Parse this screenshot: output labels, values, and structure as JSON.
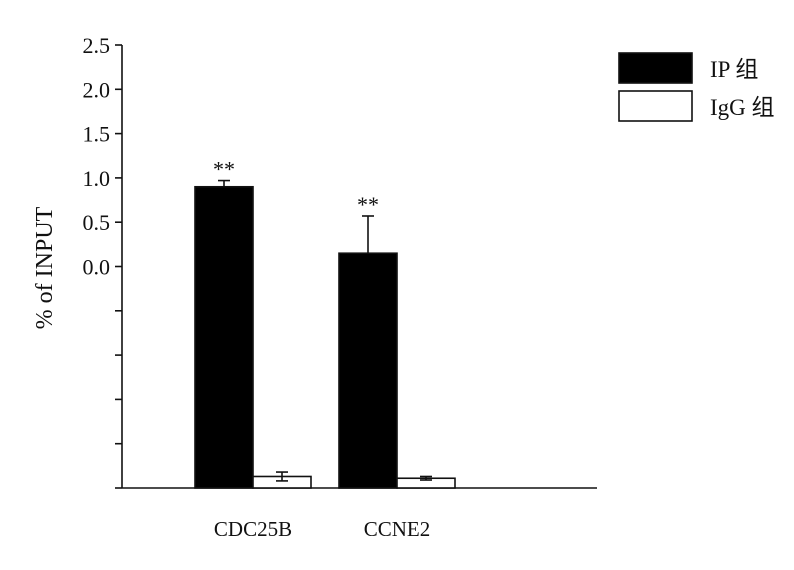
{
  "chart_data": {
    "type": "bar",
    "title": "",
    "xlabel": "",
    "ylabel": "% of INPUT",
    "ylim": [
      -2.5,
      2.5
    ],
    "yticks_labeled": [
      "2.5",
      "2.0",
      "1.5",
      "1.0",
      "0.5",
      "0.0"
    ],
    "ytick_values": [
      2.5,
      2.0,
      1.5,
      1.0,
      0.5,
      0.0,
      -0.5,
      -1.0,
      -1.5,
      -2.0,
      -2.5
    ],
    "categories": [
      "CDC25B",
      "CCNE2"
    ],
    "series": [
      {
        "name": "IP 组",
        "color": "#000000",
        "values": [
          0.9,
          0.15
        ],
        "errors": [
          0.07,
          0.42
        ]
      },
      {
        "name": "IgG 组",
        "color": "#ffffff",
        "values": [
          -2.37,
          -2.39
        ],
        "errors": [
          0.05,
          0.02
        ]
      }
    ],
    "annotations": [
      {
        "category": "CDC25B",
        "text": "**"
      },
      {
        "category": "CCNE2",
        "text": "**"
      }
    ],
    "legend": {
      "placement": "top-right"
    },
    "grid": false
  }
}
